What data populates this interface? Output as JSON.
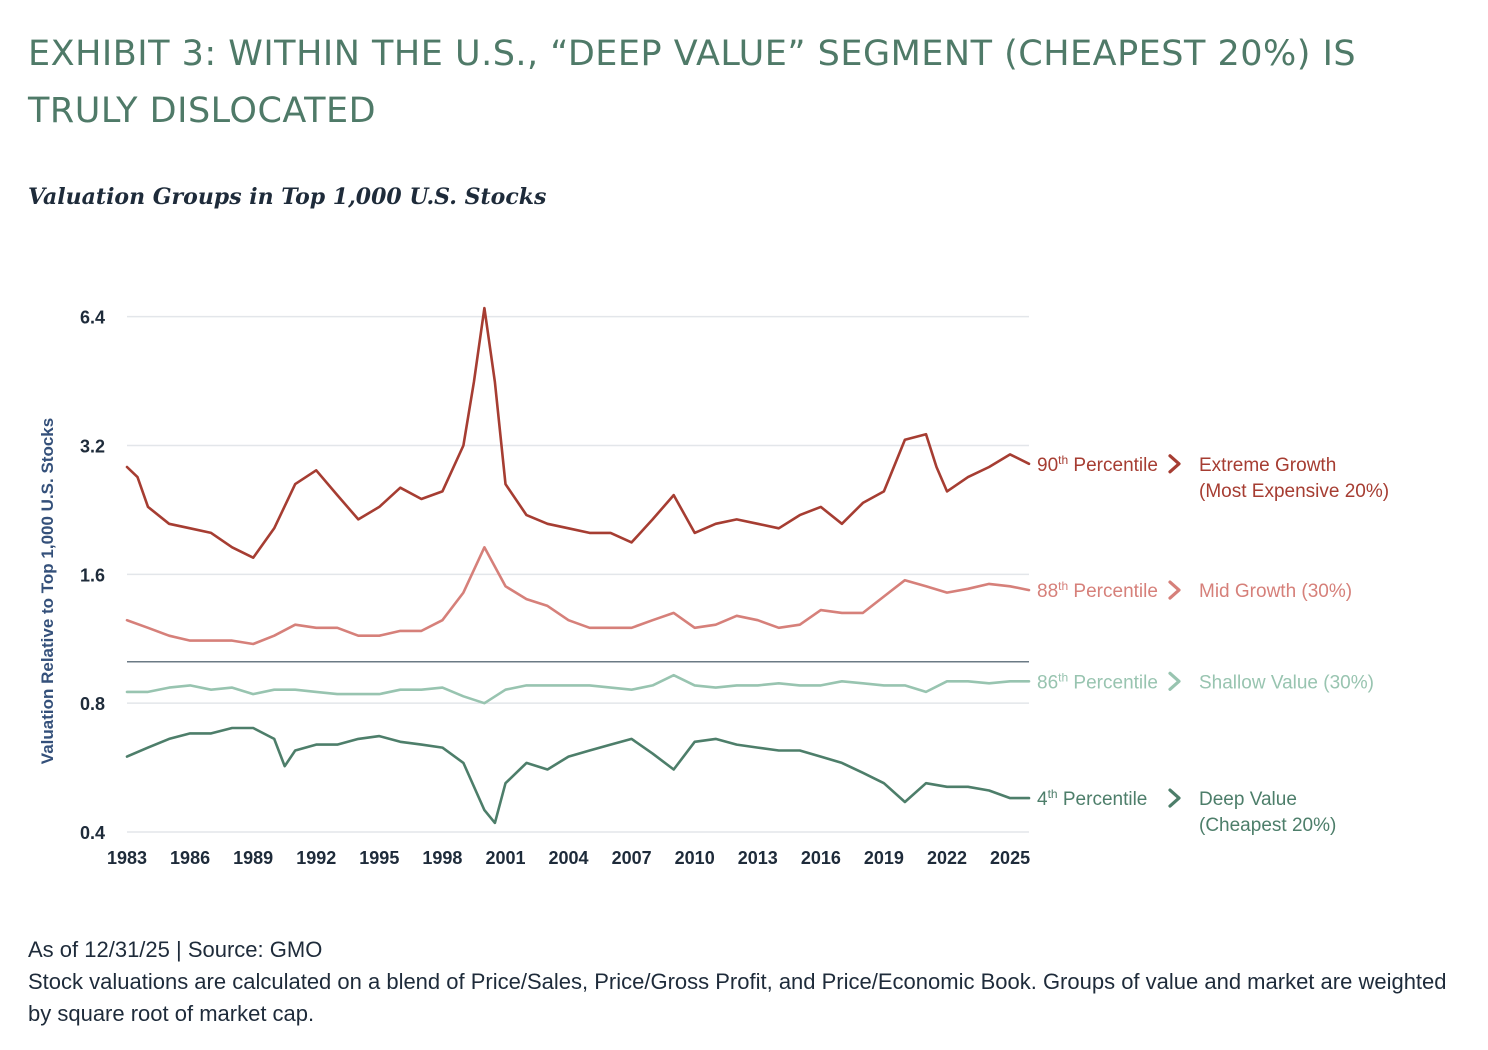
{
  "title": "EXHIBIT 3: WITHIN THE U.S., “DEEP VALUE” SEGMENT (CHEAPEST 20%) IS TRULY DISLOCATED",
  "subtitle": "Valuation Groups in Top 1,000 U.S. Stocks",
  "colors": {
    "title": "#4f7a68",
    "subtitle": "#1e2b3a",
    "extreme_growth": "#a63d32",
    "mid_growth": "#d6807a",
    "shallow_value": "#98c4b0",
    "deep_value": "#4d7e6a",
    "reference_line": "#6b7a85",
    "grid": "#e3e6ea",
    "axis_text": "#1e2b3a"
  },
  "chart_data": {
    "type": "line",
    "y_scale": "log",
    "ylabel": "Valuation Relative to Top 1,000 U.S. Stocks",
    "xlabel": "",
    "y_ticks": [
      0.4,
      0.8,
      1.6,
      3.2,
      6.4
    ],
    "y_tick_labels": [
      "0.4",
      "0.8",
      "1.6",
      "3.2",
      "6.4"
    ],
    "ylim": [
      0.4,
      7.0
    ],
    "x_ticks": [
      1983,
      1986,
      1989,
      1992,
      1995,
      1998,
      2001,
      2004,
      2007,
      2010,
      2013,
      2016,
      2019,
      2022,
      2025
    ],
    "x_tick_labels": [
      "1983",
      "1986",
      "1989",
      "1992",
      "1995",
      "1998",
      "2001",
      "2004",
      "2007",
      "2010",
      "2013",
      "2016",
      "2019",
      "2022",
      "2025"
    ],
    "xlim": [
      1983,
      2025.9
    ],
    "reference_line": 1.0,
    "grid": true,
    "series": [
      {
        "key": "extreme_growth",
        "percentile_base": "90",
        "percentile_sup": "th",
        "percentile_word": "Percentile",
        "label_line1": "Extreme Growth",
        "label_line2": "(Most Expensive 20%)",
        "points": [
          [
            1983,
            2.85
          ],
          [
            1983.5,
            2.7
          ],
          [
            1984,
            2.3
          ],
          [
            1985,
            2.1
          ],
          [
            1986,
            2.05
          ],
          [
            1987,
            2.0
          ],
          [
            1988,
            1.85
          ],
          [
            1989,
            1.75
          ],
          [
            1990,
            2.05
          ],
          [
            1991,
            2.6
          ],
          [
            1992,
            2.8
          ],
          [
            1993,
            2.45
          ],
          [
            1994,
            2.15
          ],
          [
            1995,
            2.3
          ],
          [
            1996,
            2.55
          ],
          [
            1997,
            2.4
          ],
          [
            1998,
            2.5
          ],
          [
            1999,
            3.2
          ],
          [
            1999.5,
            4.5
          ],
          [
            2000,
            6.7
          ],
          [
            2000.5,
            4.5
          ],
          [
            2001,
            2.6
          ],
          [
            2002,
            2.2
          ],
          [
            2003,
            2.1
          ],
          [
            2004,
            2.05
          ],
          [
            2005,
            2.0
          ],
          [
            2006,
            2.0
          ],
          [
            2007,
            1.9
          ],
          [
            2008,
            2.15
          ],
          [
            2009,
            2.45
          ],
          [
            2010,
            2.0
          ],
          [
            2011,
            2.1
          ],
          [
            2012,
            2.15
          ],
          [
            2013,
            2.1
          ],
          [
            2014,
            2.05
          ],
          [
            2015,
            2.2
          ],
          [
            2016,
            2.3
          ],
          [
            2017,
            2.1
          ],
          [
            2018,
            2.35
          ],
          [
            2019,
            2.5
          ],
          [
            2020,
            3.3
          ],
          [
            2021,
            3.4
          ],
          [
            2021.5,
            2.85
          ],
          [
            2022,
            2.5
          ],
          [
            2023,
            2.7
          ],
          [
            2024,
            2.85
          ],
          [
            2025,
            3.05
          ],
          [
            2025.9,
            2.9
          ]
        ]
      },
      {
        "key": "mid_growth",
        "percentile_base": "88",
        "percentile_sup": "th",
        "percentile_word": "Percentile",
        "label_line1": "Mid Growth (30%)",
        "label_line2": "",
        "points": [
          [
            1983,
            1.25
          ],
          [
            1984,
            1.2
          ],
          [
            1985,
            1.15
          ],
          [
            1986,
            1.12
          ],
          [
            1987,
            1.12
          ],
          [
            1988,
            1.12
          ],
          [
            1989,
            1.1
          ],
          [
            1990,
            1.15
          ],
          [
            1991,
            1.22
          ],
          [
            1992,
            1.2
          ],
          [
            1993,
            1.2
          ],
          [
            1994,
            1.15
          ],
          [
            1995,
            1.15
          ],
          [
            1996,
            1.18
          ],
          [
            1997,
            1.18
          ],
          [
            1998,
            1.25
          ],
          [
            1999,
            1.45
          ],
          [
            2000,
            1.85
          ],
          [
            2001,
            1.5
          ],
          [
            2002,
            1.4
          ],
          [
            2003,
            1.35
          ],
          [
            2004,
            1.25
          ],
          [
            2005,
            1.2
          ],
          [
            2006,
            1.2
          ],
          [
            2007,
            1.2
          ],
          [
            2008,
            1.25
          ],
          [
            2009,
            1.3
          ],
          [
            2010,
            1.2
          ],
          [
            2011,
            1.22
          ],
          [
            2012,
            1.28
          ],
          [
            2013,
            1.25
          ],
          [
            2014,
            1.2
          ],
          [
            2015,
            1.22
          ],
          [
            2016,
            1.32
          ],
          [
            2017,
            1.3
          ],
          [
            2018,
            1.3
          ],
          [
            2019,
            1.42
          ],
          [
            2020,
            1.55
          ],
          [
            2021,
            1.5
          ],
          [
            2022,
            1.45
          ],
          [
            2023,
            1.48
          ],
          [
            2024,
            1.52
          ],
          [
            2025,
            1.5
          ],
          [
            2025.9,
            1.47
          ]
        ]
      },
      {
        "key": "shallow_value",
        "percentile_base": "86",
        "percentile_sup": "th",
        "percentile_word": "Percentile",
        "label_line1": "Shallow Value (30%)",
        "label_line2": "",
        "points": [
          [
            1983,
            0.85
          ],
          [
            1984,
            0.85
          ],
          [
            1985,
            0.87
          ],
          [
            1986,
            0.88
          ],
          [
            1987,
            0.86
          ],
          [
            1988,
            0.87
          ],
          [
            1989,
            0.84
          ],
          [
            1990,
            0.86
          ],
          [
            1991,
            0.86
          ],
          [
            1992,
            0.85
          ],
          [
            1993,
            0.84
          ],
          [
            1994,
            0.84
          ],
          [
            1995,
            0.84
          ],
          [
            1996,
            0.86
          ],
          [
            1997,
            0.86
          ],
          [
            1998,
            0.87
          ],
          [
            1999,
            0.83
          ],
          [
            2000,
            0.8
          ],
          [
            2001,
            0.86
          ],
          [
            2002,
            0.88
          ],
          [
            2003,
            0.88
          ],
          [
            2004,
            0.88
          ],
          [
            2005,
            0.88
          ],
          [
            2006,
            0.87
          ],
          [
            2007,
            0.86
          ],
          [
            2008,
            0.88
          ],
          [
            2009,
            0.93
          ],
          [
            2010,
            0.88
          ],
          [
            2011,
            0.87
          ],
          [
            2012,
            0.88
          ],
          [
            2013,
            0.88
          ],
          [
            2014,
            0.89
          ],
          [
            2015,
            0.88
          ],
          [
            2016,
            0.88
          ],
          [
            2017,
            0.9
          ],
          [
            2018,
            0.89
          ],
          [
            2019,
            0.88
          ],
          [
            2020,
            0.88
          ],
          [
            2021,
            0.85
          ],
          [
            2022,
            0.9
          ],
          [
            2023,
            0.9
          ],
          [
            2024,
            0.89
          ],
          [
            2025,
            0.9
          ],
          [
            2025.9,
            0.9
          ]
        ]
      },
      {
        "key": "deep_value",
        "percentile_base": "4",
        "percentile_sup": "th",
        "percentile_word": "Percentile",
        "label_line1": "Deep Value",
        "label_line2": "(Cheapest 20%)",
        "points": [
          [
            1983,
            0.6
          ],
          [
            1984,
            0.63
          ],
          [
            1985,
            0.66
          ],
          [
            1986,
            0.68
          ],
          [
            1987,
            0.68
          ],
          [
            1988,
            0.7
          ],
          [
            1989,
            0.7
          ],
          [
            1990,
            0.66
          ],
          [
            1990.5,
            0.57
          ],
          [
            1991,
            0.62
          ],
          [
            1992,
            0.64
          ],
          [
            1993,
            0.64
          ],
          [
            1994,
            0.66
          ],
          [
            1995,
            0.67
          ],
          [
            1996,
            0.65
          ],
          [
            1997,
            0.64
          ],
          [
            1998,
            0.63
          ],
          [
            1999,
            0.58
          ],
          [
            2000,
            0.45
          ],
          [
            2000.5,
            0.42
          ],
          [
            2001,
            0.52
          ],
          [
            2002,
            0.58
          ],
          [
            2003,
            0.56
          ],
          [
            2004,
            0.6
          ],
          [
            2005,
            0.62
          ],
          [
            2006,
            0.64
          ],
          [
            2007,
            0.66
          ],
          [
            2008,
            0.61
          ],
          [
            2009,
            0.56
          ],
          [
            2010,
            0.65
          ],
          [
            2011,
            0.66
          ],
          [
            2012,
            0.64
          ],
          [
            2013,
            0.63
          ],
          [
            2014,
            0.62
          ],
          [
            2015,
            0.62
          ],
          [
            2016,
            0.6
          ],
          [
            2017,
            0.58
          ],
          [
            2018,
            0.55
          ],
          [
            2019,
            0.52
          ],
          [
            2020,
            0.47
          ],
          [
            2021,
            0.52
          ],
          [
            2022,
            0.51
          ],
          [
            2023,
            0.51
          ],
          [
            2024,
            0.5
          ],
          [
            2025,
            0.48
          ],
          [
            2025.9,
            0.48
          ]
        ]
      }
    ]
  },
  "footer": {
    "source": "As of 12/31/25 | Source: GMO",
    "note": "Stock valuations are calculated on a blend of Price/Sales, Price/Gross Profit, and Price/Economic Book. Groups of value and market are weighted by square root of market cap."
  }
}
